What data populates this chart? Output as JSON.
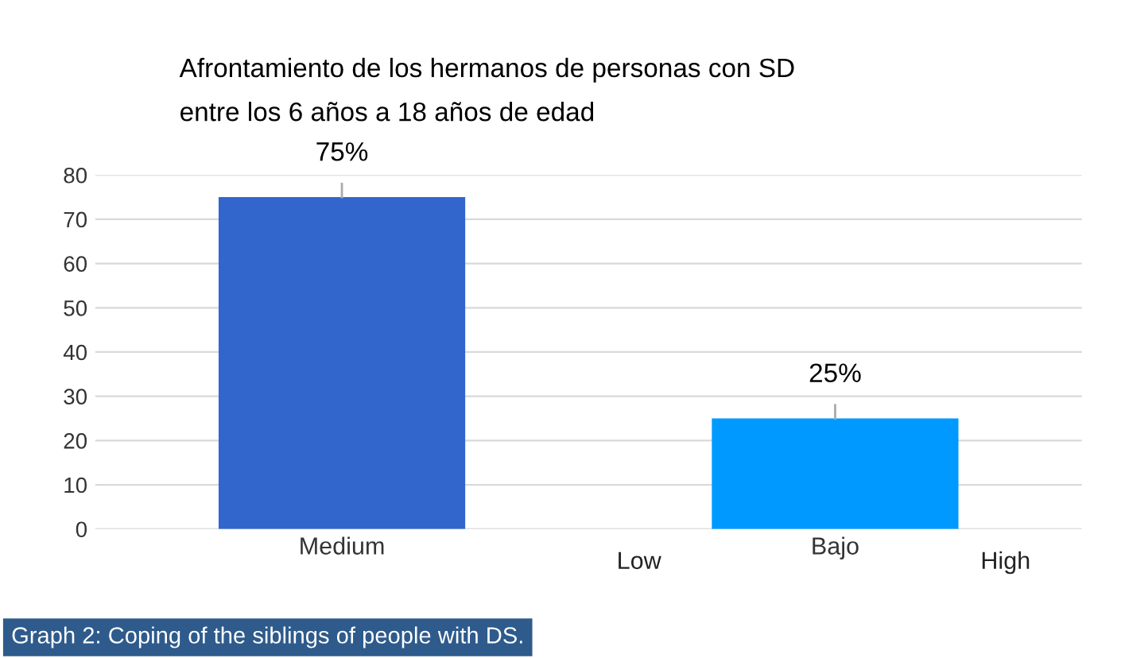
{
  "chart_data": {
    "type": "bar",
    "title": "Afrontamiento de los hermanos de personas con SD\nentre los 6 años a 18 años de edad",
    "categories": [
      "Medium",
      "Bajo"
    ],
    "values": [
      75,
      25
    ],
    "colors": [
      "#3366cc",
      "#0099ff"
    ],
    "value_labels": [
      "75%",
      "25%"
    ],
    "ylim": [
      0,
      80
    ],
    "yticks": [
      0,
      10,
      20,
      30,
      40,
      50,
      60,
      70,
      80
    ],
    "grid": "y",
    "annotations": [
      "Low",
      "High",
      "Graph 2: Coping of the siblings of people with DS."
    ]
  }
}
